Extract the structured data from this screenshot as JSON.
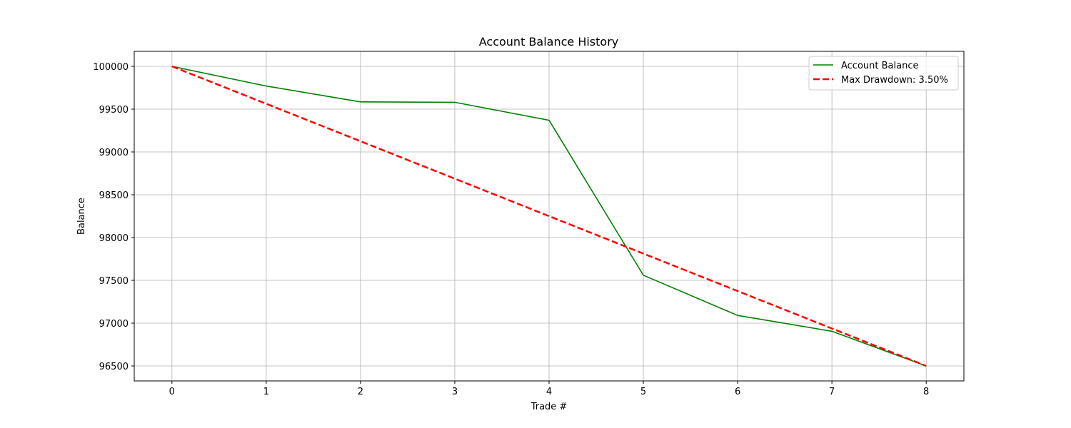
{
  "chart_data": {
    "type": "line",
    "title": "Account Balance History",
    "xlabel": "Trade #",
    "ylabel": "Balance",
    "x": [
      0,
      1,
      2,
      3,
      4,
      5,
      6,
      7,
      8
    ],
    "xlim": [
      -0.4,
      8.4
    ],
    "ylim": [
      96325,
      100175
    ],
    "x_ticks": [
      0,
      1,
      2,
      3,
      4,
      5,
      6,
      7,
      8
    ],
    "y_ticks": [
      96500,
      97000,
      97500,
      98000,
      98500,
      99000,
      99500,
      100000
    ],
    "grid": true,
    "legend_position": "top-right",
    "series": [
      {
        "name": "Account Balance",
        "color": "#008000",
        "style": "solid",
        "values": [
          100000,
          99770,
          99585,
          99580,
          99370,
          97560,
          97090,
          96905,
          96500
        ]
      },
      {
        "name": "Max Drawdown: 3.50%",
        "color": "#ff0000",
        "style": "dashed",
        "values": [
          100000,
          99562.5,
          99125,
          98687.5,
          98250,
          97812.5,
          97375,
          96937.5,
          96500
        ]
      }
    ]
  }
}
